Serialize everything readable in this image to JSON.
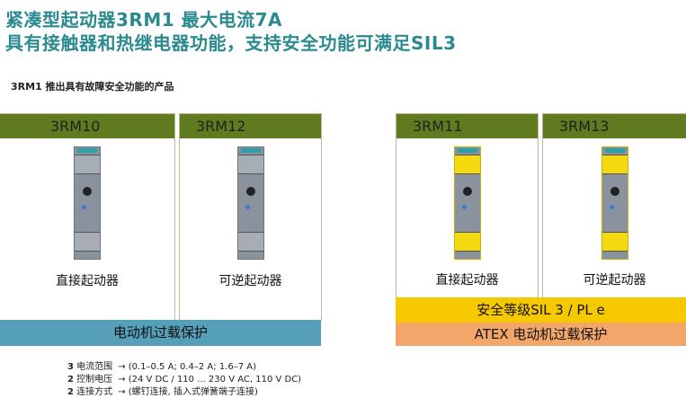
{
  "title_line1": "紧凑型起动器3RM1 最大电流7A",
  "title_line2": "具有接触器和热继电器功能，支持安全功能可满足SIL3",
  "subtitle": "3RM1 推出具有故障安全功能的产品",
  "cards": [
    {
      "model": "3RM10",
      "label": "直接起动器",
      "color": "gray"
    },
    {
      "model": "3RM12",
      "label": "可逆起动器",
      "color": "gray"
    },
    {
      "model": "3RM11",
      "label": "直接起动器",
      "color": "yellow"
    },
    {
      "model": "3RM13",
      "label": "可逆起动器",
      "color": "yellow"
    }
  ],
  "bars": {
    "overload": "电动机过载保护",
    "safety": "安全等级SIL 3  /  PL e",
    "atex": "ATEX  电动机过载保护"
  },
  "bar_colors": {
    "overload": "#559fb8",
    "safety": "#f5c800",
    "atex": "#f3a66a",
    "header": "#5f7a1f"
  },
  "specs": [
    {
      "count": "3",
      "name": "电流范围",
      "value": "→  (0.1–0.5 A; 0.4–2 A; 1.6–7 A)"
    },
    {
      "count": "2",
      "name": "控制电压",
      "value": "→ (24 V DC / 110 ... 230 V AC, 110 V DC)"
    },
    {
      "count": "2",
      "name": "连接方式",
      "value": "→ (螺钉连接, 插入式弹簧端子连接)"
    }
  ]
}
